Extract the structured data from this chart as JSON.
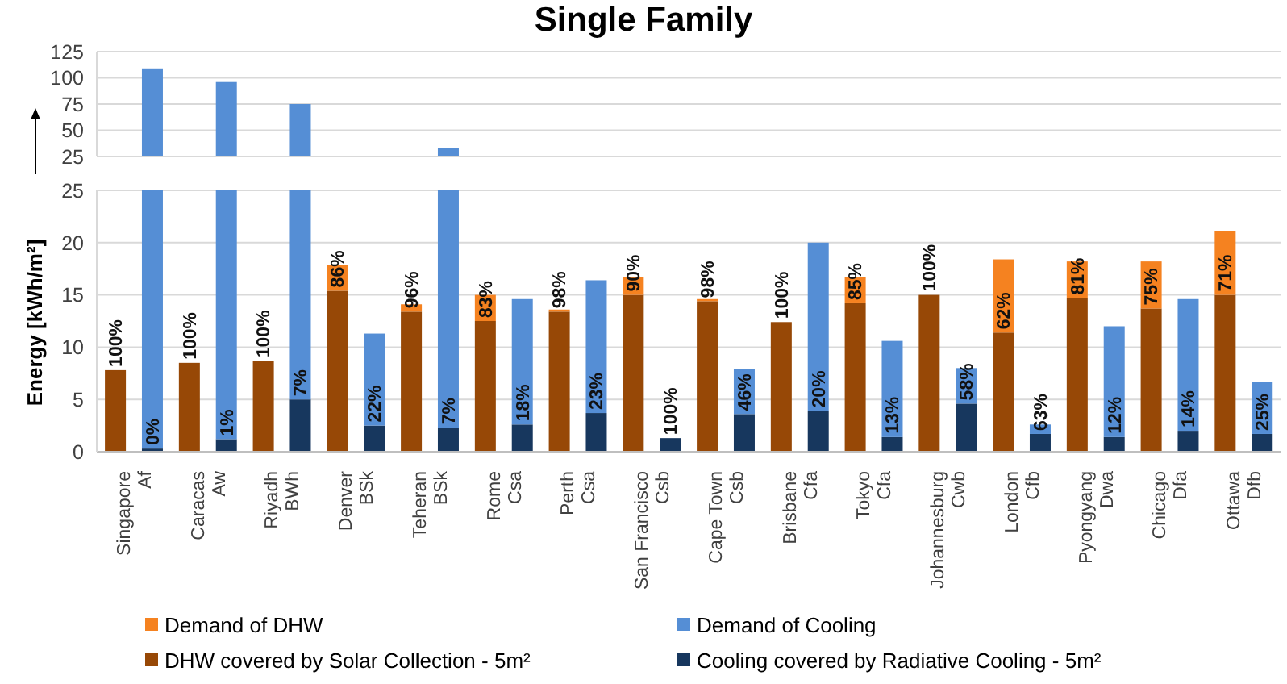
{
  "chart_data": [
    {
      "type": "bar",
      "title": "Single Family",
      "categories": [
        null,
        null,
        null,
        null,
        null,
        null,
        null,
        null,
        null,
        null,
        null,
        null,
        null,
        null,
        null,
        null,
        null,
        null,
        null,
        null,
        null,
        null,
        null,
        null,
        null,
        null,
        null,
        null,
        null,
        null,
        null,
        null
      ],
      "series": [
        {
          "color": "#558ed5",
          "values": [
            null,
            109,
            null,
            96,
            null,
            75,
            null,
            null,
            null,
            33,
            null,
            null,
            null,
            null,
            null,
            null,
            null,
            null,
            null,
            null,
            null,
            null,
            null,
            null,
            null,
            null,
            null,
            null,
            null,
            null,
            null,
            null
          ]
        }
      ],
      "ylim": [
        25,
        125
      ],
      "yticks": [
        25,
        50,
        75,
        100,
        125
      ],
      "grid": "y",
      "tick_labels": "y"
    },
    {
      "type": "bar",
      "ylabel": "Energy [kWh/m²]",
      "categories": [
        "Singapore\nAf",
        null,
        "Caracas\nAw",
        null,
        "Riyadh\nBWh",
        null,
        "Denver\nBSk",
        null,
        "Teheran\nBSk",
        null,
        "Rome\nCsa",
        null,
        "Perth\nCsa",
        null,
        "San Francisco\nCsb",
        null,
        "Cape Town\nCsb",
        null,
        "Brisbane\nCfa",
        null,
        "Tokyo\nCfa",
        null,
        "Johannesburg\nCwb",
        null,
        "London\nCfb",
        null,
        "Pyongyang\nDwa",
        null,
        "Chicago\nDfa",
        null,
        "Ottawa\nDfb",
        null
      ],
      "stacked": true,
      "series": [
        {
          "name": "DHW covered by Solar Collection - 5m²",
          "color": "#974806",
          "values": [
            7.8,
            null,
            8.5,
            null,
            8.7,
            null,
            15.4,
            null,
            13.4,
            null,
            12.5,
            null,
            13.4,
            null,
            15.0,
            null,
            14.4,
            null,
            12.4,
            null,
            14.2,
            null,
            15.0,
            null,
            11.4,
            null,
            14.7,
            null,
            13.7,
            null,
            15.0,
            null
          ]
        },
        {
          "name": "Demand of DHW",
          "color": "#f58220",
          "values": [
            0,
            null,
            0,
            null,
            0,
            null,
            2.5,
            null,
            0.7,
            null,
            2.5,
            null,
            0.2,
            null,
            1.7,
            null,
            0.2,
            null,
            0,
            null,
            2.5,
            null,
            0,
            null,
            7.0,
            null,
            3.5,
            null,
            4.5,
            null,
            6.1,
            null
          ]
        },
        {
          "name": "Cooling covered by Radiative Cooling - 5m²",
          "color": "#17375e",
          "values": [
            null,
            0.3,
            null,
            1.2,
            null,
            5.0,
            null,
            2.5,
            null,
            2.3,
            null,
            2.6,
            null,
            3.7,
            null,
            1.3,
            null,
            3.6,
            null,
            3.9,
            null,
            1.4,
            null,
            4.6,
            null,
            1.7,
            null,
            1.4,
            null,
            2.0,
            null,
            1.7
          ]
        },
        {
          "name": "Demand of Cooling",
          "color": "#558ed5",
          "values": [
            null,
            24.7,
            null,
            23.8,
            null,
            20.0,
            null,
            8.8,
            null,
            22.7,
            null,
            12.0,
            null,
            12.7,
            null,
            0,
            null,
            4.3,
            null,
            16.1,
            null,
            9.2,
            null,
            3.4,
            null,
            0.9,
            null,
            10.6,
            null,
            12.6,
            null,
            5.0
          ]
        }
      ],
      "annotations": [
        "100%",
        "100%",
        "100%",
        "86%",
        "96%",
        "83%",
        "98%",
        "90%",
        "98%",
        "100%",
        "85%",
        "100%",
        "62%",
        "81%",
        "75%",
        "71%",
        "0%",
        "1%",
        "7%",
        "22%",
        "7%",
        "18%",
        "23%",
        "100%",
        "46%",
        "20%",
        "13%",
        "58%",
        "63%",
        "12%",
        "14%",
        "25%"
      ],
      "ylim": [
        0,
        25
      ],
      "yticks": [
        0,
        5,
        10,
        15,
        20,
        25
      ],
      "grid": "y",
      "legend": "bottom"
    }
  ]
}
